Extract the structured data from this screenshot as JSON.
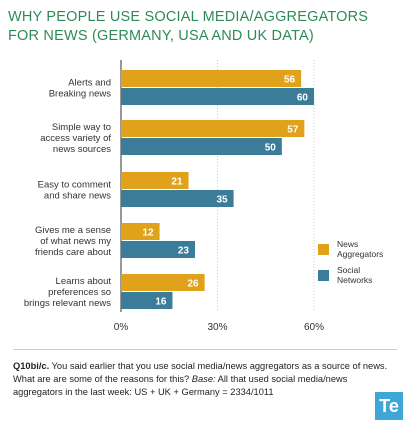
{
  "header": {
    "title": "WHY PEOPLE USE SOCIAL MEDIA/AGGREGATORS FOR NEWS (GERMANY, USA AND UK DATA)"
  },
  "chart_data": {
    "type": "bar",
    "orientation": "horizontal",
    "title": "WHY PEOPLE USE SOCIAL MEDIA/AGGREGATORS FOR NEWS (GERMANY, USA AND UK DATA)",
    "categories": [
      [
        "Alerts and",
        "Breaking news"
      ],
      [
        "Simple way to",
        "access variety of",
        "news sources"
      ],
      [
        "Easy to comment",
        "and share news"
      ],
      [
        "Gives me a sense",
        "of what news my",
        "friends care about"
      ],
      [
        "Learns about",
        "preferences so",
        "brings relevant news"
      ]
    ],
    "series": [
      {
        "name_lines": [
          "News",
          "Aggregators"
        ],
        "color": "#e0a21b",
        "values": [
          56,
          57,
          21,
          12,
          26
        ]
      },
      {
        "name_lines": [
          "Social",
          "Networks"
        ],
        "color": "#3b7d99",
        "values": [
          60,
          50,
          35,
          23,
          16
        ]
      }
    ],
    "xlim": [
      0,
      60
    ],
    "ticks": [
      0,
      30,
      60
    ],
    "tick_labels": [
      "0%",
      "30%",
      "60%"
    ],
    "grid": true,
    "legend_position": "right"
  },
  "footnote": {
    "label": "Q10bi/c.",
    "text1": " You said earlier that you use social media/news aggregators as a source of news. What are are some of the reasons for this? ",
    "base_label": "Base:",
    "text2": " All that used social media/news aggregators in the last week: US + UK + Germany = 2334/1011"
  },
  "logo": {
    "text": "Te"
  }
}
